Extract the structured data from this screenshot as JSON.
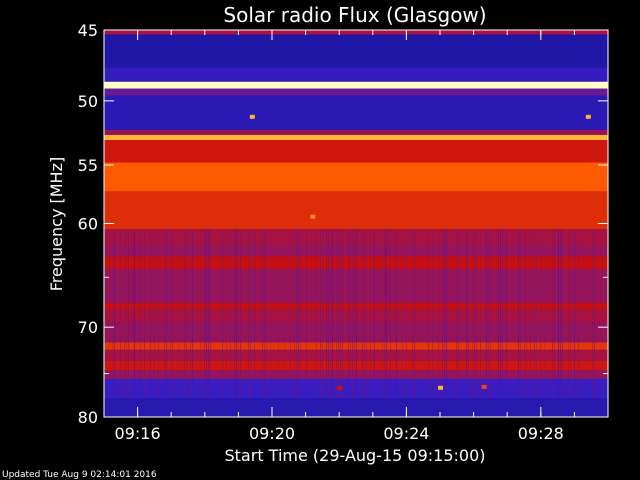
{
  "chart_data": {
    "type": "heatmap",
    "title": "Solar radio Flux (Glasgow)",
    "xlabel": "Start Time (29-Aug-15 09:15:00)",
    "ylabel": "Frequency [MHz]",
    "x_start_minutes": 0.0,
    "x_end_minutes": 15.0,
    "x_ticks": [
      {
        "label": "09:16",
        "minute": 1
      },
      {
        "label": "09:20",
        "minute": 5
      },
      {
        "label": "09:24",
        "minute": 9
      },
      {
        "label": "09:28",
        "minute": 13
      }
    ],
    "ylim": [
      45,
      80
    ],
    "y_scale": "log",
    "y_major_ticks": [
      45,
      50,
      55,
      60,
      70,
      80
    ],
    "y_minor_ticks": [
      65,
      75
    ],
    "colormap": "blue-red-yellow",
    "colors": {
      "background": "#000000",
      "low": "#1a1ad0",
      "mid": "#c01010",
      "high": "#ff6a00",
      "peak": "#ffffa0"
    },
    "bands": [
      {
        "from": 45.0,
        "to": 45.3,
        "intensity": 0.5
      },
      {
        "from": 45.3,
        "to": 47.6,
        "intensity": 0.08
      },
      {
        "from": 47.6,
        "to": 48.6,
        "intensity": 0.2
      },
      {
        "from": 48.6,
        "to": 49.1,
        "intensity": 1.0
      },
      {
        "from": 49.1,
        "to": 49.6,
        "intensity": 0.35
      },
      {
        "from": 49.6,
        "to": 52.2,
        "intensity": 0.15
      },
      {
        "from": 52.2,
        "to": 52.6,
        "intensity": 0.45
      },
      {
        "from": 52.6,
        "to": 53.0,
        "intensity": 0.9
      },
      {
        "from": 53.0,
        "to": 54.8,
        "intensity": 0.62
      },
      {
        "from": 54.8,
        "to": 57.2,
        "intensity": 0.8
      },
      {
        "from": 57.2,
        "to": 60.5,
        "intensity": 0.68
      },
      {
        "from": 60.5,
        "to": 62.0,
        "intensity": 0.5
      },
      {
        "from": 62.0,
        "to": 63.0,
        "intensity": 0.45
      },
      {
        "from": 63.0,
        "to": 64.2,
        "intensity": 0.6
      },
      {
        "from": 64.2,
        "to": 67.5,
        "intensity": 0.45
      },
      {
        "from": 67.5,
        "to": 68.2,
        "intensity": 0.6
      },
      {
        "from": 68.2,
        "to": 69.5,
        "intensity": 0.5
      },
      {
        "from": 69.5,
        "to": 71.6,
        "intensity": 0.45
      },
      {
        "from": 71.6,
        "to": 72.4,
        "intensity": 0.7
      },
      {
        "from": 72.4,
        "to": 73.6,
        "intensity": 0.5
      },
      {
        "from": 73.6,
        "to": 74.6,
        "intensity": 0.62
      },
      {
        "from": 74.6,
        "to": 75.6,
        "intensity": 0.45
      },
      {
        "from": 75.6,
        "to": 77.8,
        "intensity": 0.22
      },
      {
        "from": 77.8,
        "to": 80.0,
        "intensity": 0.12
      }
    ],
    "spots": [
      {
        "minute": 4.4,
        "mhz": 51.2,
        "intensity": 0.9
      },
      {
        "minute": 14.4,
        "mhz": 51.2,
        "intensity": 0.9
      },
      {
        "minute": 6.2,
        "mhz": 59.4,
        "intensity": 0.85
      },
      {
        "minute": 10.0,
        "mhz": 76.6,
        "intensity": 0.9
      },
      {
        "minute": 11.3,
        "mhz": 76.5,
        "intensity": 0.75
      },
      {
        "minute": 7.0,
        "mhz": 76.6,
        "intensity": 0.6
      },
      {
        "minute": 1.0,
        "mhz": 68.7,
        "intensity": 0.6
      }
    ]
  },
  "footer": "Updated Tue Aug  9 02:14:01 2016"
}
